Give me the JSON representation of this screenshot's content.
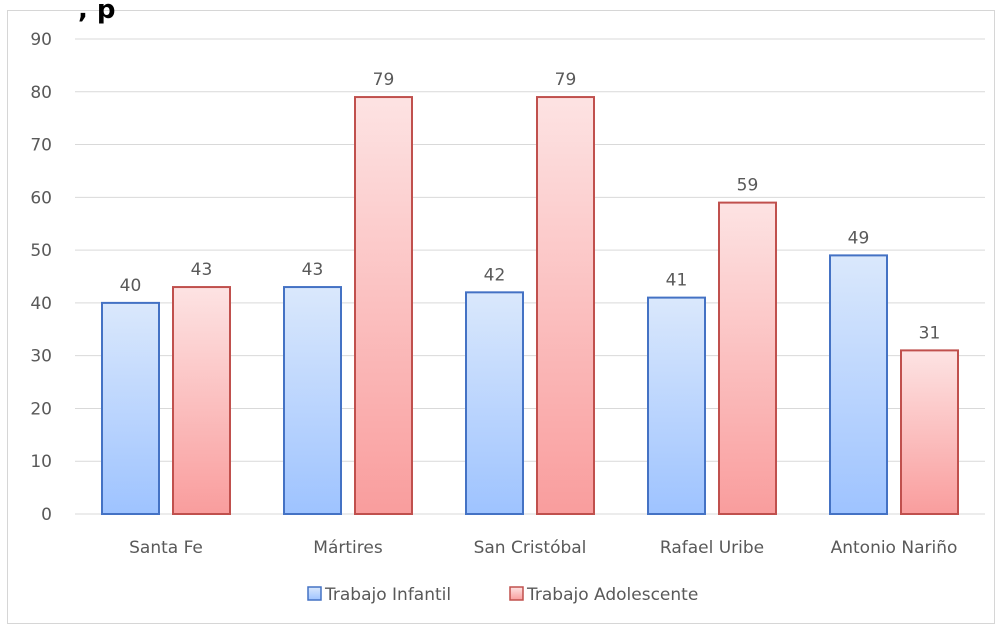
{
  "title_fragment": ", p",
  "chart_data": {
    "type": "bar",
    "categories": [
      "Santa Fe",
      "Mártires",
      "San Cristóbal",
      "Rafael Uribe",
      "Antonio Nariño"
    ],
    "series": [
      {
        "name": "Trabajo Infantil",
        "values": [
          40,
          43,
          42,
          41,
          49
        ],
        "colors": {
          "top": "#dae8fc",
          "bottom": "#9ec3ff",
          "stroke": "#4472c4"
        }
      },
      {
        "name": "Trabajo Adolescente",
        "values": [
          43,
          79,
          79,
          59,
          31
        ],
        "colors": {
          "top": "#fde3e3",
          "bottom": "#f99d9d",
          "stroke": "#c0504d"
        }
      }
    ],
    "ylim": [
      0,
      90
    ],
    "yticks": [
      0,
      10,
      20,
      30,
      40,
      50,
      60,
      70,
      80,
      90
    ],
    "grid": true,
    "legend_position": "bottom",
    "data_labels": true,
    "gridline_color": "#d9d9d9"
  }
}
